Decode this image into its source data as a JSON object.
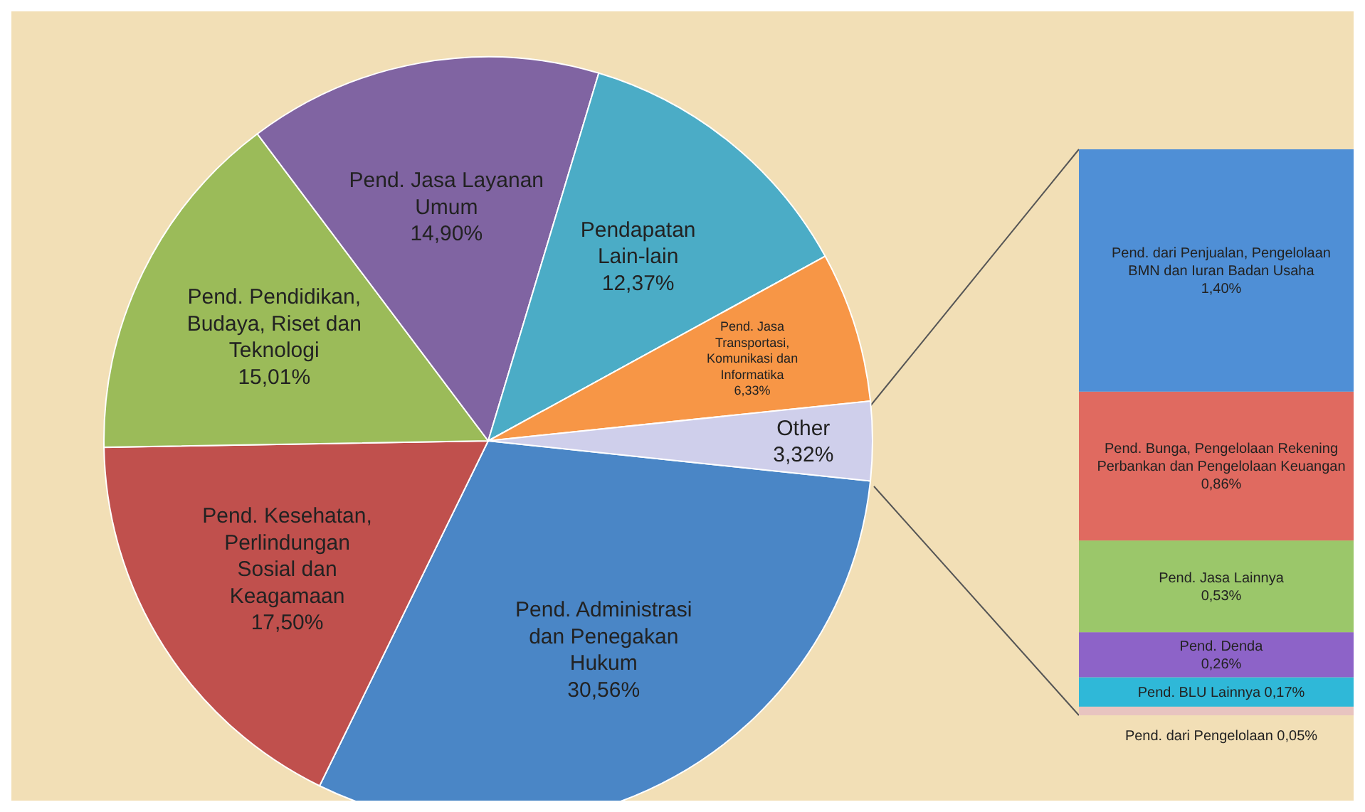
{
  "chart_data": [
    {
      "type": "pie",
      "categories": [
        "Pend. Administrasi dan Penegakan Hukum",
        "Pend. Kesehatan, Perlindungan Sosial dan Keagamaan",
        "Pend. Pendidikan, Budaya, Riset dan Teknologi",
        "Pend. Jasa Layanan Umum",
        "Pendapatan Lain-lain",
        "Pend. Jasa Transportasi, Komunikasi dan Informatika",
        "Other"
      ],
      "values": [
        30.56,
        17.5,
        15.01,
        14.9,
        12.37,
        6.33,
        3.32
      ],
      "value_labels": [
        "30,56%",
        "17,50%",
        "15,01%",
        "14,90%",
        "12,37%",
        "6,33%",
        "3,32%"
      ],
      "colors": [
        "#4a86c6",
        "#c0504d",
        "#9bbb59",
        "#8064a2",
        "#4bacc6",
        "#f79646",
        "#cfcfeb"
      ]
    },
    {
      "type": "bar",
      "stacked": true,
      "categories": [
        null
      ],
      "series": [
        {
          "name": "Pend. dari Pengelolaan",
          "color": "#e8c4c0",
          "values": [
            0.05
          ],
          "value_labels": [
            "0,05%"
          ]
        },
        {
          "name": "Pend. BLU Lainnya",
          "color": "#2fb8d8",
          "values": [
            0.17
          ],
          "value_labels": [
            "0,17%"
          ]
        },
        {
          "name": "Pend. Denda",
          "color": "#8d63c8",
          "values": [
            0.26
          ],
          "value_labels": [
            "0,26%"
          ]
        },
        {
          "name": "Pend. Jasa Lainnya",
          "color": "#9bc76a",
          "values": [
            0.53
          ],
          "value_labels": [
            "0,53%"
          ]
        },
        {
          "name": "Pend. Bunga, Pengelolaan Rekening Perbankan dan Pengelolaan Keuangan",
          "color": "#e06a60",
          "values": [
            0.86
          ],
          "value_labels": [
            "0,86%"
          ]
        },
        {
          "name": "Pend. dari Penjualan, Pengelolaan BMN dan Iuran Badan Usaha",
          "color": "#4f8fd6",
          "values": [
            1.4
          ],
          "value_labels": [
            "1,40%"
          ]
        }
      ]
    }
  ]
}
